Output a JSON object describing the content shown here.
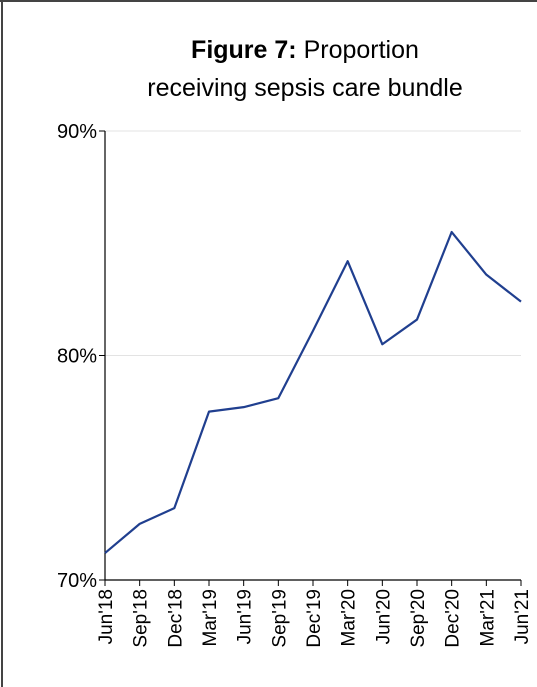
{
  "chart_data": {
    "type": "line",
    "title_label": "Figure 7:",
    "title": "Proportion receiving sepsis care bundle",
    "categories": [
      "Jun'18",
      "Sep'18",
      "Dec'18",
      "Mar'19",
      "Jun'19",
      "Sep'19",
      "Dec'19",
      "Mar'20",
      "Jun'20",
      "Sep'20",
      "Dec'20",
      "Mar'21",
      "Jun'21"
    ],
    "series": [
      {
        "name": "Proportion receiving sepsis care bundle",
        "color": "#203f8f",
        "values": [
          71.2,
          72.5,
          73.2,
          77.5,
          77.7,
          78.1,
          81.1,
          84.2,
          80.5,
          81.6,
          85.5,
          83.6,
          82.4
        ]
      }
    ],
    "ylim": [
      70,
      90
    ],
    "yticks": [
      {
        "value": 70,
        "label": "70%"
      },
      {
        "value": 80,
        "label": "80%"
      },
      {
        "value": 90,
        "label": "90%"
      }
    ],
    "grid": true
  }
}
